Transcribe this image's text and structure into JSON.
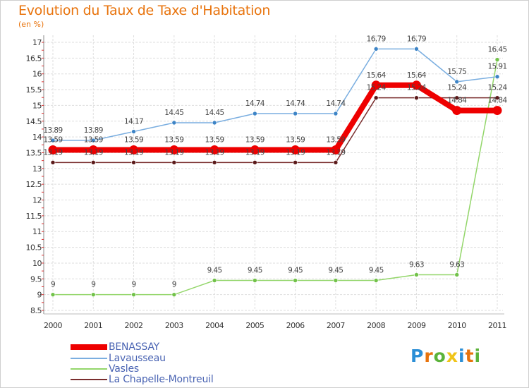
{
  "chart_data": {
    "type": "line",
    "title": "Evolution du Taux de Taxe d'Habitation",
    "subtitle": "(en %)",
    "x": [
      "2000",
      "2001",
      "2002",
      "2003",
      "2004",
      "2005",
      "2006",
      "2007",
      "2008",
      "2009",
      "2010",
      "2011"
    ],
    "ylim": [
      8.5,
      17
    ],
    "yticks": [
      "8.5",
      "9",
      "9.5",
      "10",
      "10.5",
      "11",
      "11.5",
      "12",
      "12.5",
      "13",
      "13.5",
      "14",
      "14.5",
      "15",
      "15.5",
      "16",
      "16.5",
      "17"
    ],
    "grid": true,
    "legend": "bottom",
    "series": [
      {
        "name": "La Chapelle-Montreuil",
        "color": "#7a2e2e",
        "marker": "#5b1a1a",
        "width": 1.5,
        "values": [
          13.19,
          13.19,
          13.19,
          13.19,
          13.19,
          13.19,
          13.19,
          13.19,
          15.24,
          15.24,
          15.24,
          15.24
        ],
        "labels": [
          "13.19",
          "13.19",
          "13.19",
          "13.19",
          "13.19",
          "13.19",
          "13.19",
          "13.19",
          "15.24",
          "15.24",
          "15.24",
          "15.24"
        ]
      },
      {
        "name": "Vasles",
        "color": "#93d66a",
        "marker": "#72c24a",
        "width": 1.5,
        "values": [
          9,
          9,
          9,
          9,
          9.45,
          9.45,
          9.45,
          9.45,
          9.45,
          9.63,
          9.63,
          16.45
        ],
        "labels": [
          "9",
          "9",
          "9",
          "9",
          "9.45",
          "9.45",
          "9.45",
          "9.45",
          "9.45",
          "9.63",
          "9.63",
          "16.45"
        ]
      },
      {
        "name": "Lavausseau",
        "color": "#7aaee0",
        "marker": "#3d84c6",
        "width": 1.5,
        "values": [
          13.89,
          13.89,
          14.17,
          14.45,
          14.45,
          14.74,
          14.74,
          14.74,
          16.79,
          16.79,
          15.75,
          15.91
        ],
        "labels": [
          "13.89",
          "13.89",
          "14.17",
          "14.45",
          "14.45",
          "14.74",
          "14.74",
          "14.74",
          "16.79",
          "16.79",
          "15.75",
          "15.91"
        ]
      },
      {
        "name": "BENASSAY",
        "color": "#ee0000",
        "marker": "#ee0000",
        "width": 8,
        "values": [
          13.59,
          13.59,
          13.59,
          13.59,
          13.59,
          13.59,
          13.59,
          13.59,
          15.64,
          15.64,
          14.84,
          14.84
        ],
        "labels": [
          "13.59",
          "13.59",
          "13.59",
          "13.59",
          "13.59",
          "13.59",
          "13.59",
          "13.59",
          "15.64",
          "15.64",
          "14.84",
          "14.84"
        ]
      }
    ]
  },
  "legend": [
    {
      "name": "BENASSAY",
      "color": "#ee0000",
      "thick": true
    },
    {
      "name": "Lavausseau",
      "color": "#7aaee0",
      "thick": false
    },
    {
      "name": "Vasles",
      "color": "#93d66a",
      "thick": false
    },
    {
      "name": "La Chapelle-Montreuil",
      "color": "#7a2e2e",
      "thick": false
    }
  ],
  "brand": {
    "letters": [
      "P",
      "r",
      "o",
      "x",
      "i",
      "t",
      "i"
    ],
    "colors": [
      "#2c8fd6",
      "#e8730c",
      "#5bb33a",
      "#f0c419",
      "#2c8fd6",
      "#e8730c",
      "#5bb33a"
    ]
  }
}
